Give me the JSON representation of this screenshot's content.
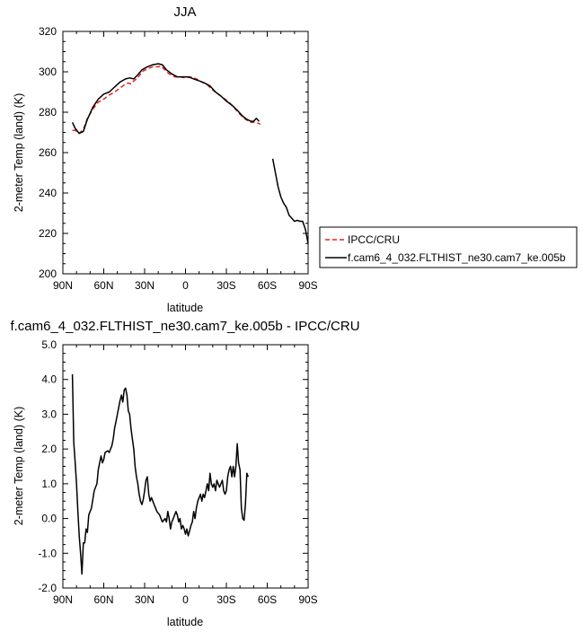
{
  "chart_data": [
    {
      "type": "line",
      "title": "JJA",
      "xlabel": "latitude",
      "ylabel": "2-meter Temp (land) (K)",
      "xlim": [
        90,
        -90
      ],
      "ylim": [
        200,
        320
      ],
      "x_ticks": [
        90,
        60,
        30,
        0,
        -30,
        -60,
        -90
      ],
      "x_tick_labels": [
        "90N",
        "60N",
        "30N",
        "0",
        "30S",
        "60S",
        "90S"
      ],
      "y_ticks": [
        200,
        220,
        240,
        260,
        280,
        300,
        320
      ],
      "y_tick_labels": [
        "200",
        "220",
        "240",
        "260",
        "280",
        "300",
        "320"
      ],
      "legend": {
        "placement": "outside-right"
      },
      "series": [
        {
          "name": "IPCC/CRU",
          "color": "#e8231f",
          "dash": "dashed",
          "segments": [
            [
              [
                83,
                271
              ],
              [
                81,
                271
              ],
              [
                78,
                269.5
              ],
              [
                75,
                271.5
              ],
              [
                72,
                277
              ],
              [
                68,
                281.5
              ],
              [
                64,
                285
              ],
              [
                60,
                286.5
              ],
              [
                56,
                288.5
              ],
              [
                52,
                290
              ],
              [
                48,
                292
              ],
              [
                45,
                293.5
              ],
              [
                42,
                294.5
              ],
              [
                40,
                294
              ],
              [
                38,
                295.5
              ],
              [
                35,
                297
              ],
              [
                32,
                300
              ],
              [
                28,
                301.5
              ],
              [
                24,
                302.5
              ],
              [
                20,
                302.5
              ],
              [
                18,
                303
              ],
              [
                16,
                301.5
              ],
              [
                12,
                299
              ],
              [
                8,
                297.5
              ],
              [
                4,
                297.5
              ],
              [
                0,
                297
              ],
              [
                -4,
                297.5
              ],
              [
                -8,
                296.5
              ],
              [
                -12,
                295
              ],
              [
                -16,
                293.5
              ],
              [
                -20,
                291
              ],
              [
                -24,
                289
              ],
              [
                -28,
                287
              ],
              [
                -32,
                285
              ],
              [
                -36,
                282
              ],
              [
                -40,
                279
              ],
              [
                -44,
                276.5
              ],
              [
                -48,
                275
              ],
              [
                -52,
                275
              ],
              [
                -55,
                274
              ]
            ]
          ]
        },
        {
          "name": "f.cam6_4_032.FLTHIST_ne30.cam7_ke.005b",
          "color": "#000000",
          "dash": "solid",
          "segments": [
            [
              [
                83,
                275
              ],
              [
                81,
                272
              ],
              [
                78,
                269.5
              ],
              [
                75,
                270.5
              ],
              [
                72,
                276.5
              ],
              [
                68,
                282.5
              ],
              [
                64,
                286.5
              ],
              [
                60,
                289
              ],
              [
                56,
                290
              ],
              [
                52,
                292.5
              ],
              [
                48,
                295
              ],
              [
                44,
                296.5
              ],
              [
                41,
                297
              ],
              [
                38,
                296.5
              ],
              [
                35,
                298.5
              ],
              [
                32,
                301
              ],
              [
                28,
                302.5
              ],
              [
                24,
                303.5
              ],
              [
                20,
                304
              ],
              [
                17,
                303.5
              ],
              [
                14,
                301
              ],
              [
                10,
                299
              ],
              [
                6,
                297.5
              ],
              [
                2,
                297.5
              ],
              [
                -2,
                297.5
              ],
              [
                -6,
                296.5
              ],
              [
                -10,
                295.5
              ],
              [
                -14,
                294.5
              ],
              [
                -18,
                293
              ],
              [
                -22,
                290
              ],
              [
                -26,
                288
              ],
              [
                -30,
                285.5
              ],
              [
                -34,
                283.5
              ],
              [
                -38,
                281
              ],
              [
                -42,
                278
              ],
              [
                -45,
                276.5
              ],
              [
                -48,
                275.5
              ],
              [
                -50,
                275.5
              ],
              [
                -52,
                277
              ],
              [
                -54,
                275.5
              ]
            ],
            [
              [
                -64,
                257
              ],
              [
                -66,
                250
              ],
              [
                -68,
                243
              ],
              [
                -70,
                238
              ],
              [
                -72,
                235
              ],
              [
                -74,
                233
              ],
              [
                -76,
                229
              ],
              [
                -78,
                227.5
              ],
              [
                -80,
                226
              ],
              [
                -82,
                226.5
              ],
              [
                -84,
                226
              ],
              [
                -86,
                226
              ],
              [
                -88,
                222
              ],
              [
                -90,
                215
              ]
            ]
          ]
        }
      ]
    },
    {
      "type": "line",
      "title": "f.cam6_4_032.FLTHIST_ne30.cam7_ke.005b - IPCC/CRU",
      "xlabel": "latitude",
      "ylabel": "2-meter Temp (land) (K)",
      "xlim": [
        90,
        -90
      ],
      "ylim": [
        -2.0,
        5.0
      ],
      "x_ticks": [
        90,
        60,
        30,
        0,
        -30,
        -60,
        -90
      ],
      "x_tick_labels": [
        "90N",
        "60N",
        "30N",
        "0",
        "30S",
        "60S",
        "90S"
      ],
      "y_ticks": [
        -2,
        -1,
        0,
        1,
        2,
        3,
        4,
        5
      ],
      "y_tick_labels": [
        "-2.0",
        "-1.0",
        "0.0",
        "1.0",
        "2.0",
        "3.0",
        "4.0",
        "5.0"
      ],
      "series": [
        {
          "color": "#000000",
          "dash": "solid",
          "segments": [
            [
              [
                83,
                4.15
              ],
              [
                82,
                2.2
              ],
              [
                81,
                1.6
              ],
              [
                80,
                1.0
              ],
              [
                79,
                0.2
              ],
              [
                78,
                -0.5
              ],
              [
                77,
                -1.0
              ],
              [
                76,
                -1.6
              ],
              [
                75,
                -0.7
              ],
              [
                74,
                -0.7
              ],
              [
                73,
                -0.3
              ],
              [
                72,
                -0.4
              ],
              [
                71,
                0.1
              ],
              [
                70,
                0.2
              ],
              [
                69,
                0.3
              ],
              [
                67,
                0.8
              ],
              [
                65,
                1.0
              ],
              [
                64,
                1.4
              ],
              [
                63,
                1.6
              ],
              [
                62,
                1.8
              ],
              [
                61,
                1.6
              ],
              [
                60,
                1.7
              ],
              [
                59,
                1.9
              ],
              [
                57,
                1.95
              ],
              [
                56,
                1.9
              ],
              [
                54,
                2.1
              ],
              [
                53,
                2.3
              ],
              [
                52,
                2.6
              ],
              [
                51,
                2.8
              ],
              [
                50,
                3.0
              ],
              [
                49,
                3.2
              ],
              [
                48,
                3.4
              ],
              [
                47,
                3.55
              ],
              [
                46,
                3.35
              ],
              [
                45,
                3.7
              ],
              [
                44,
                3.75
              ],
              [
                43,
                3.55
              ],
              [
                42,
                3.1
              ],
              [
                41,
                3.0
              ],
              [
                40,
                2.6
              ],
              [
                39,
                2.3
              ],
              [
                38,
                2.0
              ],
              [
                37,
                1.5
              ],
              [
                36,
                1.2
              ],
              [
                35,
                1.0
              ],
              [
                34,
                0.7
              ],
              [
                33,
                0.5
              ],
              [
                32,
                0.4
              ],
              [
                31,
                0.55
              ],
              [
                30,
                0.8
              ],
              [
                29,
                1.1
              ],
              [
                28,
                1.2
              ],
              [
                27,
                0.7
              ],
              [
                26,
                0.5
              ],
              [
                25,
                0.6
              ],
              [
                23,
                0.4
              ],
              [
                21,
                0.2
              ],
              [
                19,
                0.1
              ],
              [
                17,
                -0.1
              ],
              [
                15,
                0.0
              ],
              [
                14,
                -0.1
              ],
              [
                13,
                0.2
              ],
              [
                12,
                0.0
              ],
              [
                11,
                -0.3
              ],
              [
                10,
                -0.1
              ],
              [
                9,
                0.0
              ],
              [
                8,
                0.1
              ],
              [
                7,
                0.2
              ],
              [
                6,
                0.1
              ],
              [
                5,
                -0.1
              ],
              [
                4,
                0.0
              ],
              [
                3,
                -0.3
              ],
              [
                2,
                -0.2
              ],
              [
                1,
                -0.3
              ],
              [
                0,
                -0.45
              ],
              [
                -1,
                -0.3
              ],
              [
                -2,
                -0.5
              ],
              [
                -3,
                -0.35
              ],
              [
                -4,
                -0.2
              ],
              [
                -5,
                -0.1
              ],
              [
                -6,
                0.2
              ],
              [
                -7,
                0.0
              ],
              [
                -8,
                0.3
              ],
              [
                -9,
                0.5
              ],
              [
                -10,
                0.6
              ],
              [
                -11,
                0.7
              ],
              [
                -12,
                0.5
              ],
              [
                -13,
                0.7
              ],
              [
                -14,
                0.6
              ],
              [
                -15,
                0.8
              ],
              [
                -16,
                1.0
              ],
              [
                -17,
                0.8
              ],
              [
                -18,
                1.3
              ],
              [
                -19,
                1.0
              ],
              [
                -20,
                0.9
              ],
              [
                -21,
                1.0
              ],
              [
                -22,
                0.8
              ],
              [
                -23,
                1.1
              ],
              [
                -24,
                1.0
              ],
              [
                -25,
                0.9
              ],
              [
                -26,
                1.0
              ],
              [
                -27,
                1.1
              ],
              [
                -28,
                0.8
              ],
              [
                -29,
                0.7
              ],
              [
                -30,
                0.8
              ],
              [
                -31,
                1.2
              ],
              [
                -32,
                1.4
              ],
              [
                -33,
                1.5
              ],
              [
                -34,
                1.2
              ],
              [
                -35,
                1.5
              ],
              [
                -36,
                1.2
              ],
              [
                -37,
                1.5
              ],
              [
                -38,
                2.15
              ],
              [
                -39,
                1.6
              ],
              [
                -40,
                1.4
              ],
              [
                -41,
                0.3
              ],
              [
                -42,
                0.0
              ],
              [
                -43,
                -0.05
              ],
              [
                -44,
                0.4
              ],
              [
                -45,
                1.3
              ],
              [
                -46,
                1.2
              ]
            ]
          ]
        }
      ]
    }
  ]
}
